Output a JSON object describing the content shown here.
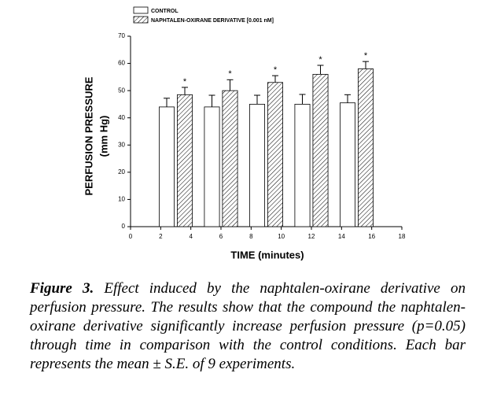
{
  "chart_data": {
    "type": "bar",
    "ylabel": [
      "PERFUSION PRESSURE",
      "(mm Hg)"
    ],
    "xlabel": "TIME (minutes)",
    "x": [
      3,
      6,
      9,
      12,
      15
    ],
    "series": [
      {
        "name": "CONTROL",
        "color": "#ffffff",
        "pattern": "none",
        "values": [
          44,
          44,
          45,
          45,
          45.5
        ],
        "errors": [
          3.2,
          4.3,
          3.3,
          3.6,
          3
        ]
      },
      {
        "name": "NAPHTALEN-OXIRANE DERIVATIVE [0.001 nM]",
        "color": "#ffffff",
        "pattern": "hatch",
        "values": [
          48.5,
          50,
          53,
          56,
          58
        ],
        "errors": [
          2.7,
          4,
          2.5,
          3.3,
          2.7
        ],
        "significance": [
          "*",
          "*",
          "*",
          "*",
          "*"
        ]
      }
    ],
    "xlim": [
      0,
      18
    ],
    "xticks": [
      0,
      2,
      4,
      6,
      8,
      10,
      12,
      14,
      16,
      18
    ],
    "ylim": [
      0,
      70
    ],
    "yticks": [
      0,
      10,
      20,
      30,
      40,
      50,
      60,
      70
    ],
    "bar_width": 1,
    "group_offset": 0.6
  },
  "caption": {
    "label": "Figure 3.",
    "text": "Effect induced by the naphtalen-oxirane derivative on perfusion pressure. The results show that the compound the naphtalen-oxirane derivative significantly increase perfusion pressure (p=0.05) through time in comparison with the control conditions. Each bar represents the mean ± S.E. of 9 experiments."
  }
}
